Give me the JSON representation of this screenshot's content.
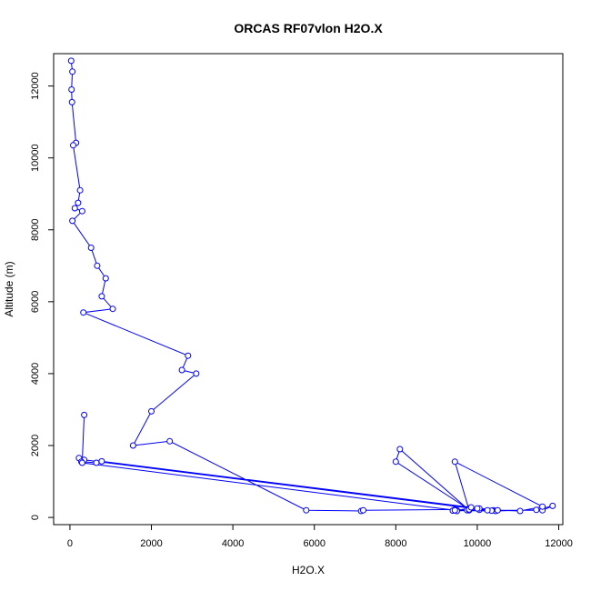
{
  "chart_data": {
    "type": "line",
    "title": "ORCAS RF07vlon H2O.X",
    "xlabel": "H2O.X",
    "ylabel": "Altitude (m)",
    "xlim": [
      -400,
      12100
    ],
    "ylim": [
      -200,
      12900
    ],
    "x_ticks": [
      0,
      2000,
      4000,
      6000,
      8000,
      10000,
      12000
    ],
    "y_ticks": [
      0,
      2000,
      4000,
      6000,
      8000,
      10000,
      12000
    ],
    "grid": false,
    "legend": "none",
    "colors": {
      "series": "#0000ff",
      "frame": "#000000"
    },
    "markers": "open-circle",
    "series": [
      {
        "x": [
          30,
          60,
          40,
          50,
          150,
          80,
          250,
          200,
          120,
          300,
          60,
          520,
          670,
          880,
          780,
          1050,
          330,
          2900,
          2750,
          3100,
          2000,
          1550,
          2450,
          5800,
          7150,
          7200,
          9450,
          9500,
          9800,
          10050,
          10400,
          11600,
          11850,
          11450,
          10450,
          9400,
          9500,
          9750,
          10050,
          10350,
          10500,
          11050,
          11600,
          9450,
          9800,
          8100,
          8000,
          9800,
          10050,
          10250,
          350,
          220,
          280,
          650,
          780,
          9850,
          10500,
          10000,
          9450,
          300,
          350
        ],
        "y": [
          12700,
          12400,
          11900,
          11550,
          10420,
          10350,
          9100,
          8750,
          8600,
          8520,
          8250,
          7500,
          7000,
          6650,
          6150,
          5800,
          5700,
          4500,
          4100,
          4000,
          2950,
          2000,
          2120,
          200,
          180,
          200,
          220,
          200,
          250,
          230,
          200,
          200,
          320,
          210,
          180,
          190,
          180,
          200,
          210,
          190,
          200,
          180,
          300,
          1550,
          200,
          1900,
          1550,
          220,
          250,
          200,
          1600,
          1650,
          1550,
          1520,
          1560,
          280,
          200,
          250,
          200,
          1520,
          2850
        ]
      }
    ]
  }
}
